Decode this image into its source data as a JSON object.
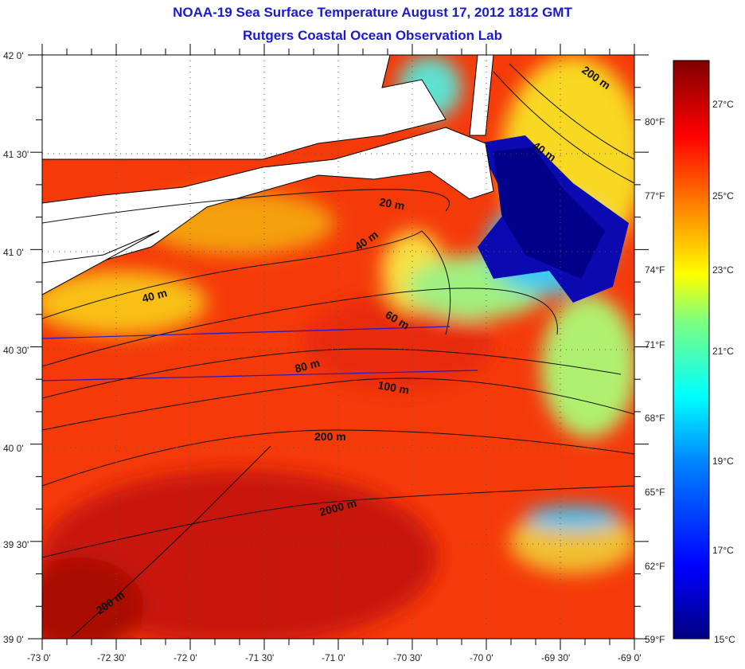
{
  "title": "NOAA-19 Sea Surface Temperature August 17, 2012 1812 GMT",
  "subtitle": "Rutgers Coastal Ocean Observation Lab",
  "lat_labels": [
    "42 0'",
    "41 30'",
    "41 0'",
    "40 30'",
    "40 0'",
    "39 30'",
    "39 0'"
  ],
  "lon_labels": [
    "-73 0'",
    "-72 30'",
    "-72 0'",
    "-71 30'",
    "-71 0'",
    "-70 30'",
    "-70 0'",
    "-69 30'",
    "-69 0'"
  ],
  "colorbar": {
    "f_labels": [
      "80°F",
      "77°F",
      "74°F",
      "71°F",
      "68°F",
      "65°F",
      "62°F",
      "59°F"
    ],
    "c_labels": [
      "27°C",
      "25°C",
      "23°C",
      "21°C",
      "19°C",
      "17°C",
      "15°C"
    ],
    "range_c": [
      15,
      28.3
    ],
    "colors": [
      "#00007f",
      "#0000ff",
      "#007fff",
      "#00ffff",
      "#7fff7f",
      "#ffff00",
      "#ff7f00",
      "#ff0000",
      "#7f0000"
    ]
  },
  "contours": [
    "20 m",
    "40 m",
    "40 m",
    "40 m",
    "60 m",
    "80 m",
    "100 m",
    "200 m",
    "200 m",
    "200 m",
    "2000 m"
  ]
}
